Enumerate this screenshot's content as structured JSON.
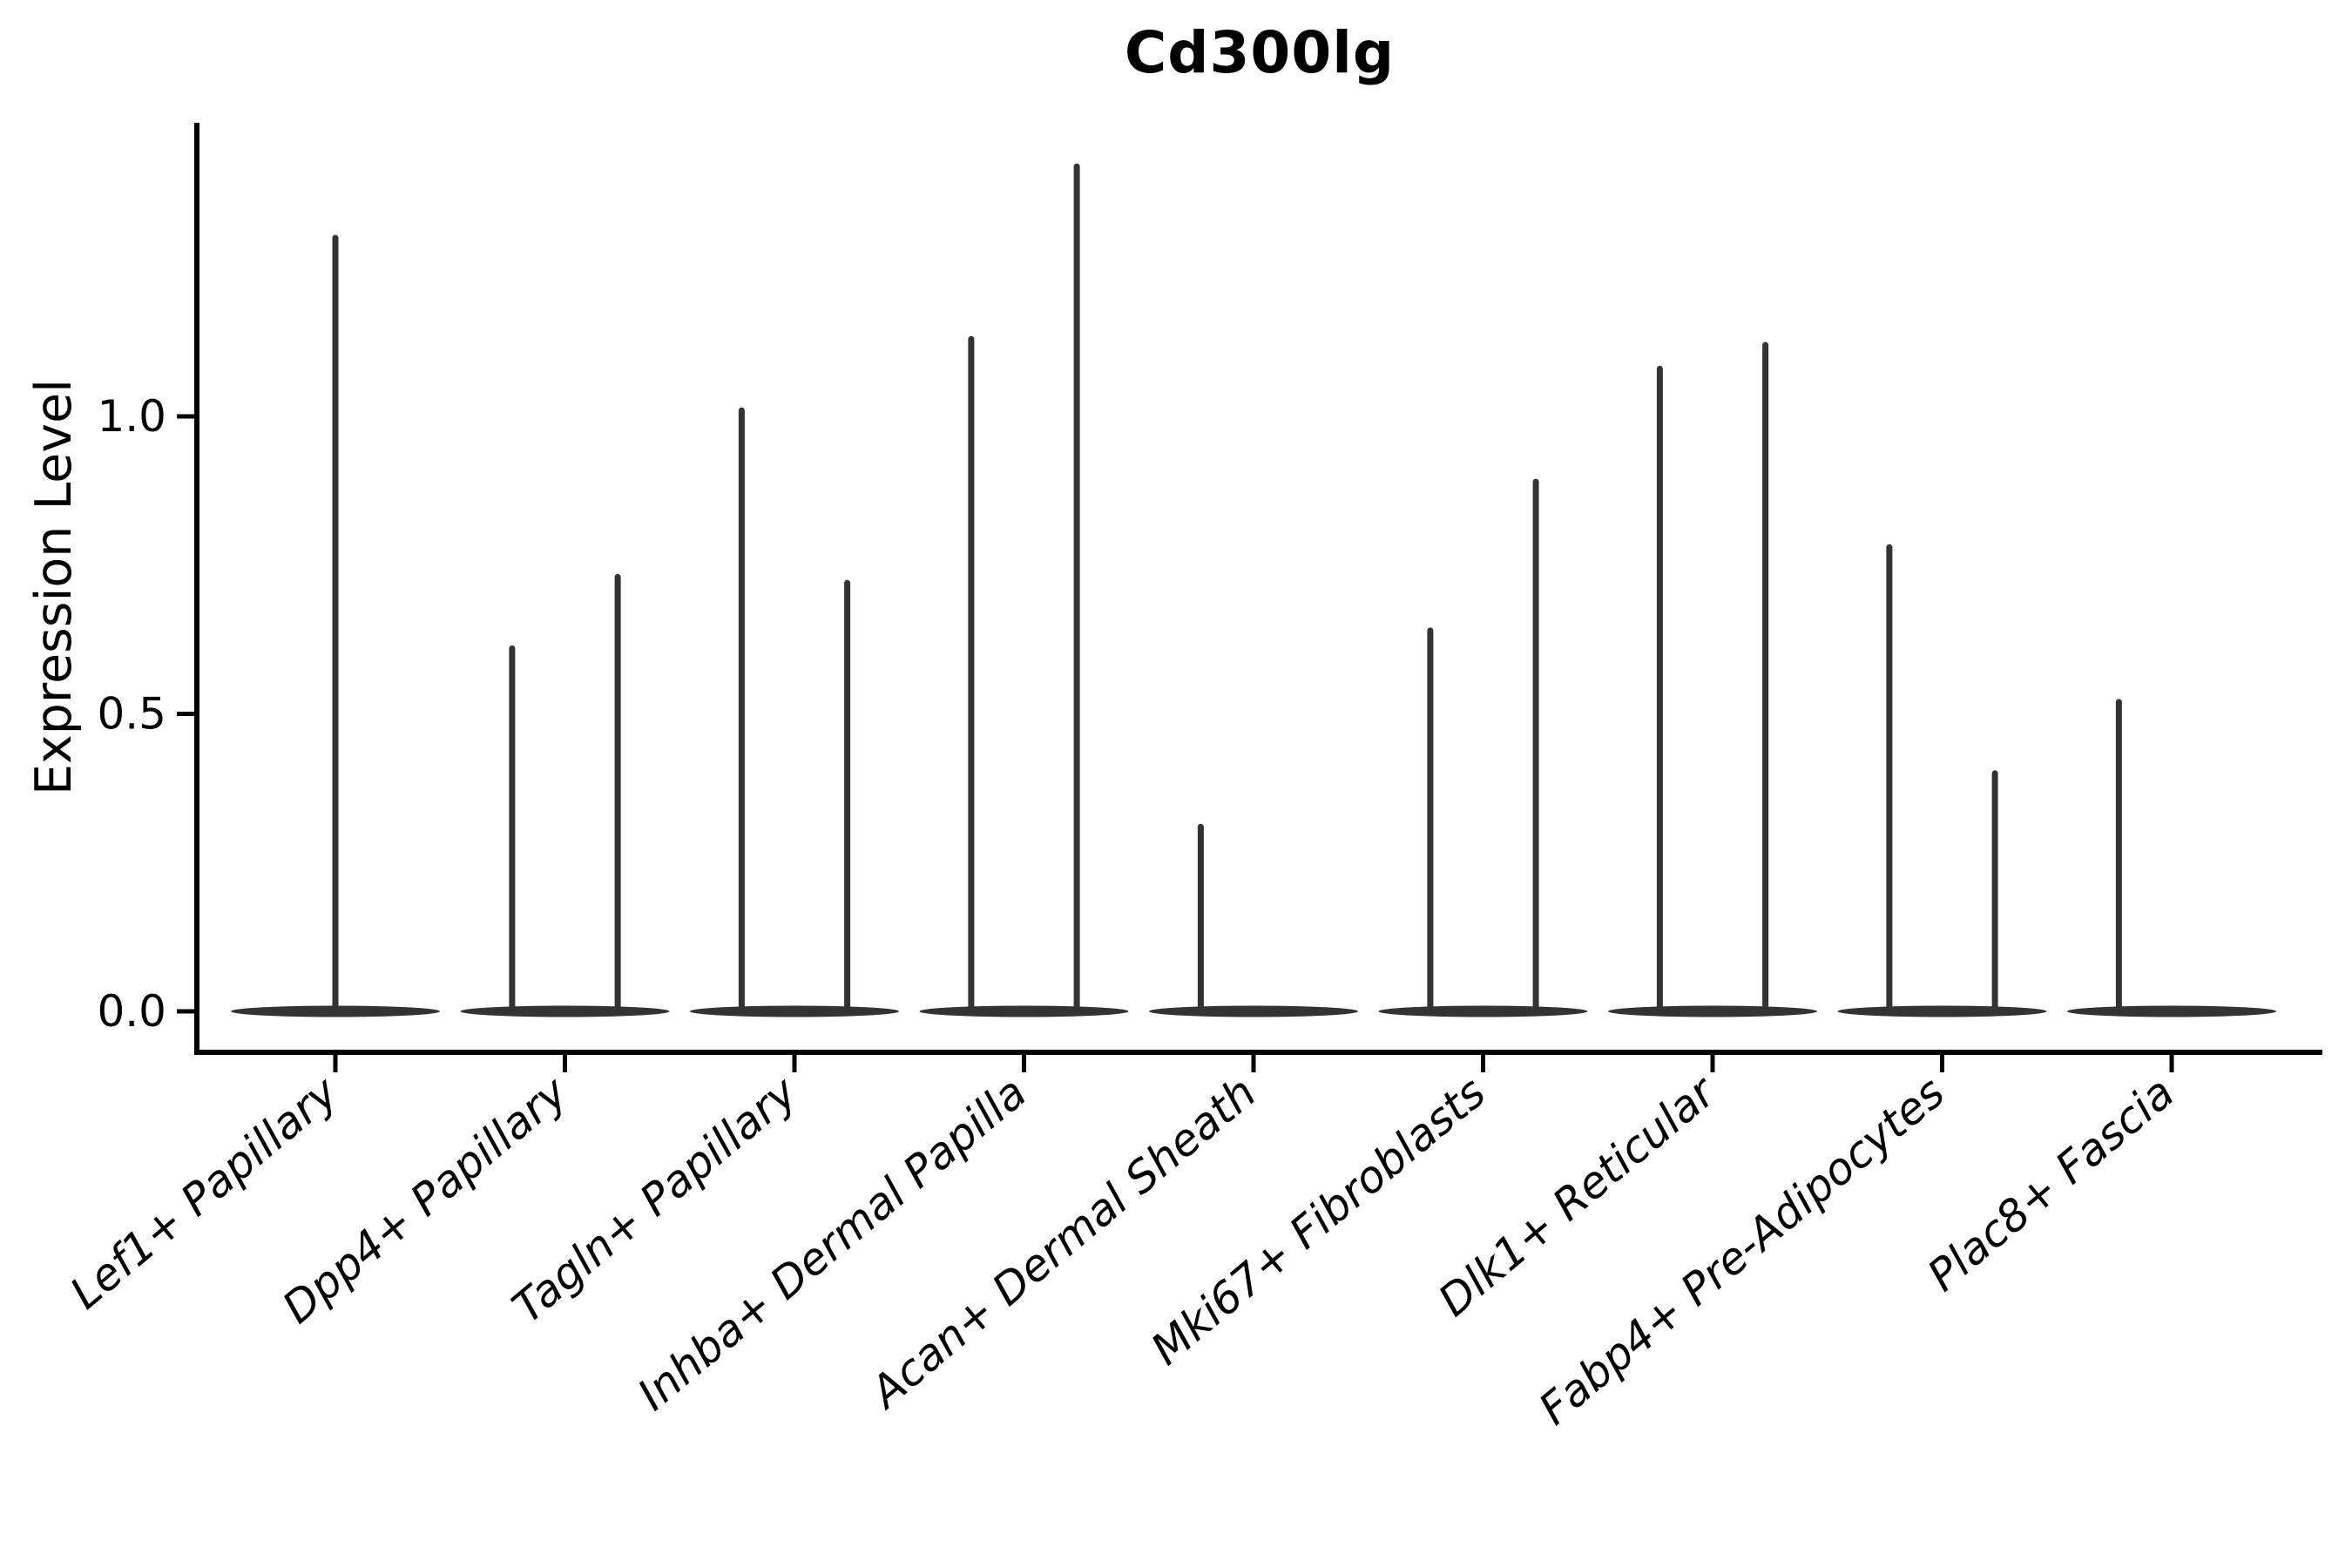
{
  "chart_data": {
    "type": "violin",
    "title": "Cd300lg",
    "ylabel": "Expression Level",
    "xlabel": "",
    "ytick_values": [
      0.0,
      0.5,
      1.0
    ],
    "ytick_labels": [
      "0.0",
      "0.5",
      "1.0"
    ],
    "ylim": [
      -0.07,
      1.49
    ],
    "grid": false,
    "legend": "none",
    "categories": [
      "Lef1+ Papillary",
      "Dpp4+ Papillary",
      "Tagln+ Papillary",
      "Inhba+ Dermal Papilla",
      "Acan+ Dermal Sheath",
      "Mki67+ Fibroblasts",
      "Dlk1+ Reticular",
      "Fabp4+ Pre-Adipocytes",
      "Plac8+ Fascia"
    ],
    "violins": [
      {
        "category": "Lef1+ Papillary",
        "body_at_zero": true,
        "spikes": [
          {
            "offset": 0.0,
            "max": 1.3
          }
        ]
      },
      {
        "category": "Dpp4+ Papillary",
        "body_at_zero": true,
        "spikes": [
          {
            "offset": -0.23,
            "max": 0.61
          },
          {
            "offset": 0.23,
            "max": 0.73
          }
        ]
      },
      {
        "category": "Tagln+ Papillary",
        "body_at_zero": true,
        "spikes": [
          {
            "offset": -0.23,
            "max": 1.01
          },
          {
            "offset": 0.23,
            "max": 0.72
          }
        ]
      },
      {
        "category": "Inhba+ Dermal Papilla",
        "body_at_zero": true,
        "spikes": [
          {
            "offset": -0.23,
            "max": 1.13
          },
          {
            "offset": 0.23,
            "max": 1.42
          }
        ]
      },
      {
        "category": "Acan+ Dermal Sheath",
        "body_at_zero": true,
        "spikes": [
          {
            "offset": -0.23,
            "max": 0.31
          }
        ]
      },
      {
        "category": "Mki67+ Fibroblasts",
        "body_at_zero": true,
        "spikes": [
          {
            "offset": -0.23,
            "max": 0.64
          },
          {
            "offset": 0.23,
            "max": 0.89
          }
        ]
      },
      {
        "category": "Dlk1+ Reticular",
        "body_at_zero": true,
        "spikes": [
          {
            "offset": -0.23,
            "max": 1.08
          },
          {
            "offset": 0.23,
            "max": 1.12
          }
        ]
      },
      {
        "category": "Fabp4+ Pre-Adipocytes",
        "body_at_zero": true,
        "spikes": [
          {
            "offset": -0.23,
            "max": 0.78
          },
          {
            "offset": 0.23,
            "max": 0.4
          }
        ]
      },
      {
        "category": "Plac8+ Fascia",
        "body_at_zero": true,
        "spikes": [
          {
            "offset": -0.23,
            "max": 0.52
          }
        ]
      }
    ],
    "colors": {
      "violin": "#333333",
      "axis": "#000000",
      "text": "#000000",
      "background": "#ffffff"
    }
  }
}
